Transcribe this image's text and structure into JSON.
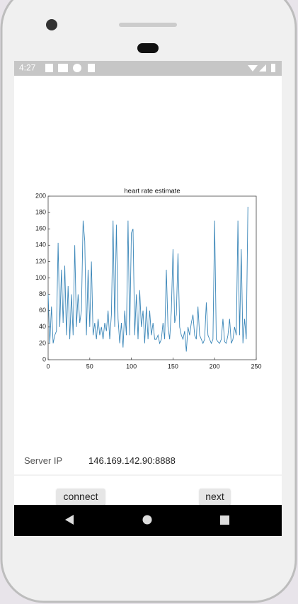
{
  "status_bar": {
    "time": "4:27"
  },
  "chart_data": {
    "type": "line",
    "title": "heart rate estimate",
    "x": [
      0,
      2,
      4,
      6,
      8,
      10,
      12,
      14,
      16,
      18,
      20,
      22,
      24,
      26,
      28,
      30,
      32,
      34,
      36,
      38,
      40,
      42,
      44,
      46,
      48,
      50,
      52,
      54,
      56,
      58,
      60,
      62,
      64,
      66,
      68,
      70,
      72,
      74,
      76,
      78,
      80,
      82,
      84,
      86,
      88,
      90,
      92,
      94,
      96,
      98,
      100,
      102,
      104,
      106,
      108,
      110,
      112,
      114,
      116,
      118,
      120,
      122,
      124,
      126,
      128,
      130,
      132,
      134,
      136,
      138,
      140,
      142,
      144,
      146,
      148,
      150,
      152,
      154,
      156,
      158,
      160,
      162,
      164,
      166,
      168,
      170,
      172,
      174,
      176,
      178,
      180,
      182,
      184,
      186,
      188,
      190,
      192,
      194,
      196,
      198,
      200,
      202,
      204,
      206,
      208,
      210,
      212,
      214,
      216,
      218,
      220,
      222,
      224,
      226,
      228,
      230,
      232,
      234,
      236,
      238,
      240
    ],
    "series": [
      {
        "name": "heart rate",
        "color": "#3a86b8",
        "values": [
          80,
          20,
          65,
          20,
          30,
          35,
          143,
          40,
          110,
          45,
          115,
          30,
          90,
          25,
          80,
          30,
          140,
          40,
          80,
          45,
          60,
          170,
          145,
          30,
          110,
          40,
          120,
          30,
          45,
          25,
          50,
          30,
          40,
          25,
          45,
          35,
          60,
          25,
          55,
          170,
          40,
          165,
          50,
          20,
          45,
          15,
          60,
          30,
          170,
          30,
          155,
          160,
          30,
          80,
          25,
          85,
          40,
          60,
          20,
          65,
          25,
          60,
          30,
          45,
          25,
          25,
          30,
          20,
          25,
          45,
          25,
          110,
          40,
          25,
          60,
          135,
          45,
          55,
          130,
          40,
          30,
          25,
          35,
          10,
          40,
          30,
          45,
          55,
          30,
          25,
          65,
          30,
          25,
          20,
          25,
          70,
          30,
          25,
          20,
          25,
          170,
          25,
          22,
          20,
          25,
          50,
          22,
          20,
          30,
          50,
          20,
          25,
          40,
          30,
          170,
          30,
          135,
          20,
          50,
          25,
          187
        ]
      }
    ],
    "xlim": [
      0,
      250
    ],
    "xticks": [
      0,
      50,
      100,
      150,
      200,
      250
    ],
    "ylim": [
      0,
      200
    ],
    "yticks": [
      0,
      20,
      40,
      60,
      80,
      100,
      120,
      140,
      160,
      180,
      200
    ]
  },
  "form": {
    "server_ip_label": "Server IP",
    "server_ip_value": "146.169.142.90:8888"
  },
  "buttons": {
    "connect": "connect",
    "next": "next"
  }
}
